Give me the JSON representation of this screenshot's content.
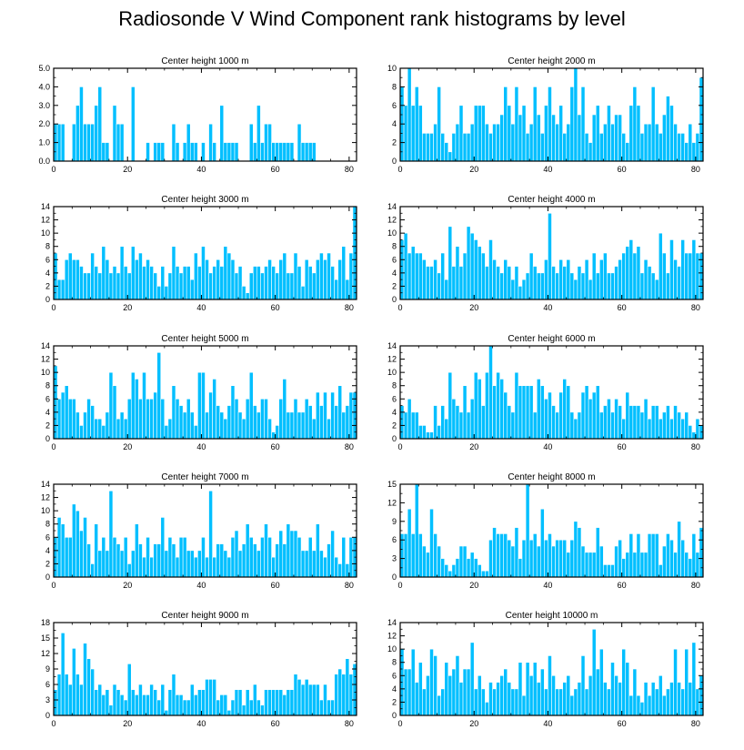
{
  "title": "Radiosonde V Wind Component rank histograms by level",
  "colors": {
    "bar": "#00BFFF",
    "bar_edge": "#ffffff",
    "axis": "#000000"
  },
  "chart_data": [
    {
      "type": "bar",
      "title": "Center height 1000 m",
      "xlim": [
        0,
        82
      ],
      "xticks": [
        "0",
        "20",
        "40",
        "60",
        "80"
      ],
      "ylim": [
        0,
        5
      ],
      "yticks": [
        "0.0",
        "1.0",
        "2.0",
        "3.0",
        "4.0",
        "5.0"
      ],
      "values": [
        2,
        2,
        2,
        0,
        0,
        2,
        3,
        4,
        2,
        2,
        2,
        3,
        4,
        1,
        1,
        0,
        3,
        2,
        2,
        0,
        0,
        4,
        0,
        0,
        0,
        1,
        0,
        1,
        1,
        1,
        0,
        0,
        2,
        1,
        0,
        1,
        2,
        1,
        1,
        0,
        1,
        0,
        2,
        1,
        0,
        3,
        1,
        1,
        1,
        1,
        0,
        0,
        0,
        2,
        1,
        3,
        1,
        2,
        2,
        1,
        1,
        1,
        1,
        1,
        1,
        0,
        2,
        1,
        1,
        1,
        1,
        0,
        0,
        0,
        0,
        0,
        0,
        0,
        0,
        0,
        0,
        0
      ]
    },
    {
      "type": "bar",
      "title": "Center height 2000 m",
      "xlim": [
        0,
        82
      ],
      "xticks": [
        "0",
        "20",
        "40",
        "60",
        "80"
      ],
      "ylim": [
        0,
        10
      ],
      "yticks": [
        "0",
        "2",
        "4",
        "6",
        "8",
        "10"
      ],
      "values": [
        8,
        6,
        10,
        6,
        8,
        6,
        3,
        3,
        3,
        4,
        8,
        3,
        2,
        1,
        3,
        4,
        6,
        3,
        3,
        4,
        6,
        6,
        6,
        4,
        3,
        4,
        4,
        5,
        8,
        6,
        4,
        8,
        5,
        6,
        3,
        4,
        8,
        5,
        3,
        6,
        8,
        5,
        4,
        6,
        3,
        4,
        8,
        10,
        5,
        8,
        3,
        2,
        5,
        6,
        3,
        4,
        6,
        4,
        5,
        5,
        3,
        2,
        6,
        8,
        6,
        3,
        4,
        4,
        8,
        4,
        3,
        5,
        7,
        6,
        4,
        3,
        3,
        2,
        4,
        2,
        3,
        9
      ]
    },
    {
      "type": "bar",
      "title": "Center height 3000 m",
      "xlim": [
        0,
        82
      ],
      "xticks": [
        "0",
        "20",
        "40",
        "60",
        "80"
      ],
      "ylim": [
        0,
        14
      ],
      "yticks": [
        "0",
        "2",
        "4",
        "6",
        "8",
        "10",
        "12",
        "14"
      ],
      "values": [
        7,
        3,
        3,
        6,
        7,
        6,
        6,
        5,
        4,
        4,
        7,
        5,
        4,
        8,
        6,
        4,
        5,
        4,
        8,
        5,
        4,
        8,
        6,
        7,
        5,
        6,
        5,
        4,
        2,
        5,
        2,
        4,
        8,
        5,
        4,
        5,
        5,
        3,
        7,
        5,
        8,
        6,
        4,
        5,
        6,
        5,
        8,
        7,
        6,
        4,
        5,
        2,
        1,
        4,
        5,
        5,
        4,
        5,
        6,
        5,
        4,
        6,
        7,
        4,
        4,
        7,
        5,
        2,
        6,
        5,
        4,
        6,
        7,
        6,
        7,
        5,
        3,
        6,
        8,
        3,
        7,
        14
      ]
    },
    {
      "type": "bar",
      "title": "Center height 4000 m",
      "xlim": [
        0,
        82
      ],
      "xticks": [
        "0",
        "20",
        "40",
        "60",
        "80"
      ],
      "ylim": [
        0,
        14
      ],
      "yticks": [
        "0",
        "2",
        "4",
        "6",
        "8",
        "10",
        "12",
        "14"
      ],
      "values": [
        9,
        10,
        7,
        8,
        7,
        7,
        6,
        5,
        5,
        6,
        4,
        7,
        3,
        11,
        5,
        8,
        5,
        7,
        11,
        10,
        9,
        8,
        7,
        5,
        9,
        6,
        5,
        4,
        6,
        5,
        3,
        5,
        2,
        3,
        4,
        7,
        5,
        4,
        4,
        6,
        13,
        5,
        4,
        6,
        5,
        6,
        4,
        3,
        5,
        4,
        6,
        3,
        7,
        4,
        6,
        7,
        4,
        4,
        5,
        6,
        7,
        8,
        9,
        7,
        8,
        4,
        6,
        5,
        4,
        3,
        10,
        7,
        4,
        9,
        6,
        5,
        9,
        7,
        7,
        9,
        7,
        7
      ]
    },
    {
      "type": "bar",
      "title": "Center height 5000 m",
      "xlim": [
        0,
        82
      ],
      "xticks": [
        "0",
        "20",
        "40",
        "60",
        "80"
      ],
      "ylim": [
        0,
        14
      ],
      "yticks": [
        "0",
        "2",
        "4",
        "6",
        "8",
        "10",
        "12",
        "14"
      ],
      "values": [
        11,
        6,
        7,
        8,
        6,
        6,
        4,
        2,
        4,
        6,
        5,
        3,
        3,
        2,
        4,
        10,
        8,
        3,
        4,
        3,
        6,
        10,
        9,
        6,
        10,
        6,
        6,
        7,
        13,
        6,
        2,
        3,
        8,
        6,
        5,
        4,
        6,
        4,
        2,
        10,
        10,
        4,
        7,
        9,
        5,
        4,
        3,
        5,
        8,
        6,
        4,
        3,
        6,
        10,
        5,
        4,
        6,
        6,
        3,
        1,
        2,
        6,
        9,
        4,
        4,
        6,
        4,
        4,
        6,
        5,
        3,
        7,
        5,
        7,
        3,
        7,
        5,
        8,
        4,
        5,
        7,
        7
      ]
    },
    {
      "type": "bar",
      "title": "Center height 6000 m",
      "xlim": [
        0,
        82
      ],
      "xticks": [
        "0",
        "20",
        "40",
        "60",
        "80"
      ],
      "ylim": [
        0,
        14
      ],
      "yticks": [
        "0",
        "2",
        "4",
        "6",
        "8",
        "10",
        "12",
        "14"
      ],
      "values": [
        5,
        4,
        6,
        4,
        4,
        2,
        2,
        1,
        1,
        5,
        2,
        5,
        3,
        10,
        6,
        5,
        4,
        8,
        4,
        6,
        10,
        9,
        5,
        10,
        14,
        8,
        10,
        9,
        7,
        5,
        4,
        10,
        8,
        8,
        8,
        8,
        4,
        9,
        8,
        6,
        7,
        5,
        4,
        7,
        9,
        8,
        4,
        3,
        4,
        7,
        8,
        6,
        7,
        8,
        4,
        5,
        6,
        4,
        6,
        5,
        3,
        7,
        5,
        5,
        5,
        4,
        6,
        3,
        5,
        5,
        3,
        4,
        5,
        3,
        5,
        4,
        3,
        4,
        2,
        1,
        3,
        2
      ]
    },
    {
      "type": "bar",
      "title": "Center height 7000 m",
      "xlim": [
        0,
        82
      ],
      "xticks": [
        "0",
        "20",
        "40",
        "60",
        "80"
      ],
      "ylim": [
        0,
        14
      ],
      "yticks": [
        "0",
        "2",
        "4",
        "6",
        "8",
        "10",
        "12",
        "14"
      ],
      "values": [
        6,
        9,
        8,
        6,
        6,
        11,
        10,
        7,
        9,
        5,
        2,
        8,
        4,
        6,
        4,
        13,
        6,
        5,
        4,
        6,
        2,
        4,
        8,
        5,
        3,
        6,
        3,
        5,
        5,
        9,
        4,
        6,
        5,
        3,
        6,
        6,
        4,
        4,
        3,
        4,
        6,
        3,
        13,
        3,
        5,
        5,
        4,
        3,
        6,
        7,
        4,
        5,
        8,
        6,
        5,
        4,
        6,
        8,
        6,
        3,
        5,
        7,
        5,
        8,
        7,
        7,
        6,
        4,
        4,
        6,
        4,
        8,
        4,
        3,
        5,
        7,
        3,
        2,
        6,
        2,
        6,
        6
      ]
    },
    {
      "type": "bar",
      "title": "Center height 8000 m",
      "xlim": [
        0,
        82
      ],
      "xticks": [
        "0",
        "20",
        "40",
        "60",
        "80"
      ],
      "ylim": [
        0,
        15
      ],
      "yticks": [
        "0",
        "3",
        "6",
        "9",
        "12",
        "15"
      ],
      "values": [
        7,
        7,
        11,
        7,
        15,
        7,
        5,
        4,
        11,
        7,
        5,
        3,
        2,
        1,
        2,
        3,
        5,
        5,
        3,
        4,
        3,
        2,
        1,
        1,
        6,
        8,
        7,
        7,
        7,
        6,
        5,
        8,
        3,
        6,
        15,
        6,
        7,
        5,
        11,
        6,
        7,
        5,
        6,
        6,
        6,
        4,
        6,
        9,
        8,
        5,
        4,
        4,
        4,
        8,
        5,
        2,
        2,
        2,
        5,
        6,
        3,
        4,
        7,
        4,
        7,
        4,
        4,
        7,
        7,
        7,
        2,
        5,
        7,
        6,
        4,
        9,
        6,
        4,
        3,
        7,
        4,
        8
      ]
    },
    {
      "type": "bar",
      "title": "Center height 9000 m",
      "xlim": [
        0,
        82
      ],
      "xticks": [
        "0",
        "20",
        "40",
        "60",
        "80"
      ],
      "ylim": [
        0,
        18
      ],
      "yticks": [
        "0",
        "3",
        "6",
        "9",
        "12",
        "15",
        "18"
      ],
      "values": [
        5,
        8,
        16,
        8,
        6,
        13,
        8,
        6,
        14,
        11,
        9,
        5,
        6,
        4,
        5,
        2,
        6,
        5,
        4,
        3,
        10,
        5,
        4,
        6,
        4,
        4,
        6,
        5,
        3,
        6,
        1,
        5,
        8,
        4,
        4,
        3,
        3,
        6,
        4,
        5,
        5,
        7,
        7,
        7,
        3,
        4,
        4,
        1,
        3,
        5,
        5,
        2,
        5,
        3,
        6,
        3,
        2,
        5,
        5,
        5,
        5,
        5,
        4,
        5,
        5,
        8,
        7,
        6,
        7,
        6,
        6,
        6,
        3,
        6,
        3,
        3,
        8,
        9,
        8,
        11,
        8,
        10
      ]
    },
    {
      "type": "bar",
      "title": "Center height 10000 m",
      "xlim": [
        0,
        82
      ],
      "xticks": [
        "0",
        "20",
        "40",
        "60",
        "80"
      ],
      "ylim": [
        0,
        14
      ],
      "yticks": [
        "0",
        "2",
        "4",
        "6",
        "8",
        "10",
        "12",
        "14"
      ],
      "values": [
        10,
        7,
        7,
        10,
        5,
        8,
        4,
        6,
        10,
        9,
        3,
        4,
        8,
        6,
        7,
        9,
        5,
        7,
        7,
        11,
        4,
        6,
        4,
        2,
        5,
        4,
        5,
        6,
        7,
        5,
        4,
        4,
        8,
        3,
        8,
        6,
        8,
        5,
        7,
        4,
        9,
        6,
        4,
        4,
        5,
        6,
        3,
        4,
        5,
        9,
        4,
        6,
        13,
        7,
        10,
        5,
        4,
        8,
        6,
        5,
        10,
        8,
        3,
        7,
        3,
        2,
        5,
        3,
        5,
        4,
        6,
        3,
        4,
        5,
        10,
        5,
        4,
        10,
        5,
        11,
        4,
        6
      ]
    }
  ]
}
